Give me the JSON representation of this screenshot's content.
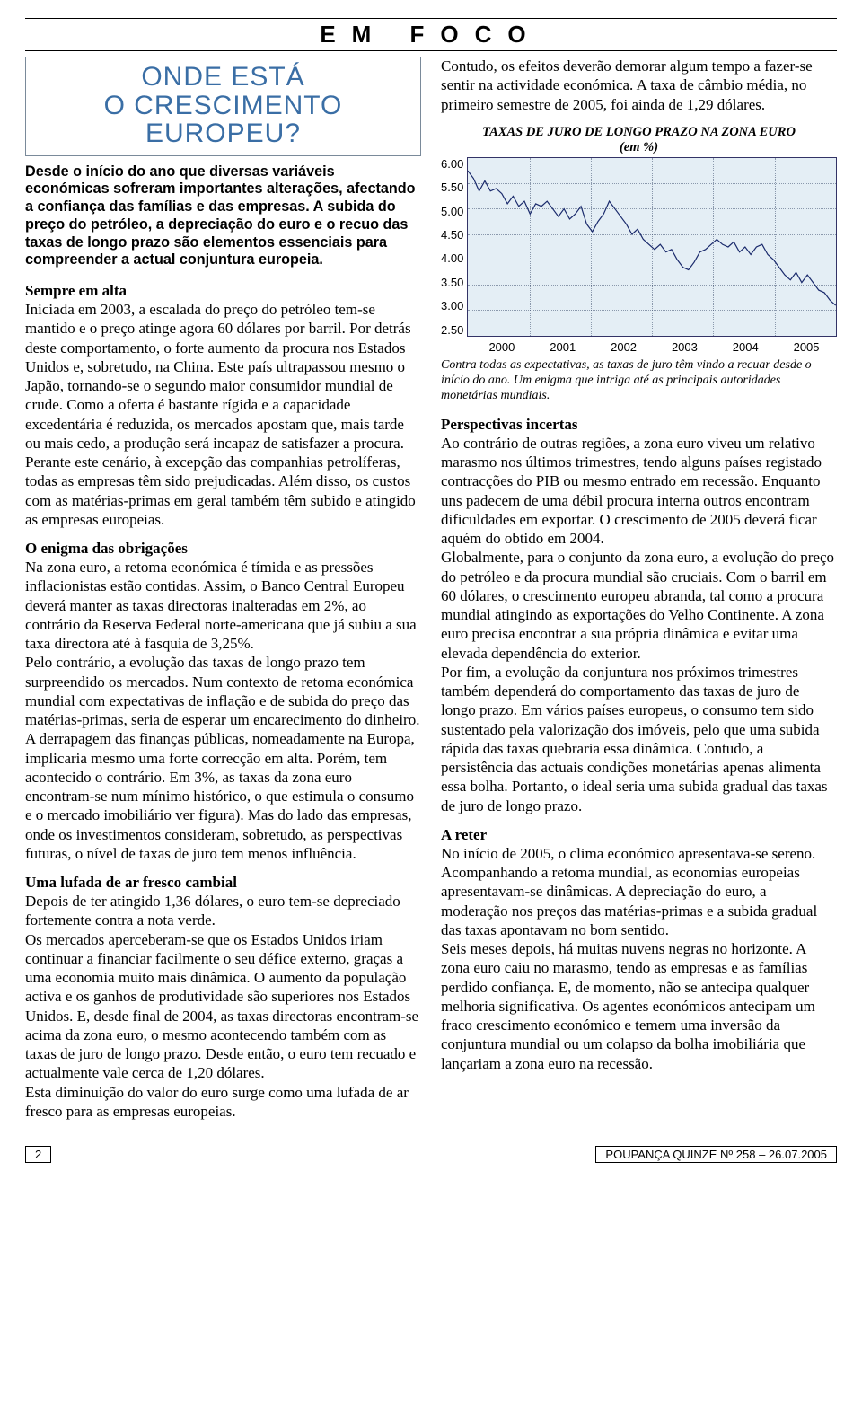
{
  "masthead": "EM FOCO",
  "headline_l1": "ONDE ESTÁ",
  "headline_l2": "O CRESCIMENTO EUROPEU?",
  "intro": "Desde o início do ano que diversas variáveis económicas sofreram importantes alterações, afectando a confiança das famílias e das empresas. A subida do preço do petróleo, a depreciação do euro e o recuo das taxas de longo prazo são elementos essenciais para compreender a actual conjuntura europeia.",
  "sec1_head": "Sempre em alta",
  "sec1_body": "Iniciada em 2003, a escalada do preço do petróleo tem-se mantido e o preço atinge agora 60 dólares por barril. Por detrás deste comportamento, o forte aumento da procura nos Estados Unidos e, sobretudo, na China. Este país ultrapassou mesmo o Japão, tornando-se o segundo maior consumidor mundial de crude. Como a oferta é bastante rígida e a capacidade excedentária é reduzida, os mercados apostam que, mais tarde ou mais cedo, a produção será incapaz de satisfazer a procura.\nPerante este cenário, à excepção das companhias petrolíferas, todas as empresas têm sido prejudicadas. Além disso, os custos com as matérias-primas em geral também têm subido e atingido as empresas europeias.",
  "sec2_head": "O enigma das obrigações",
  "sec2_body": "Na zona euro, a retoma económica é tímida e as pressões inflacionistas estão contidas. Assim, o Banco Central Europeu deverá manter as taxas directoras inalteradas em 2%, ao contrário da Reserva Federal norte-americana que já subiu a sua taxa directora até à fasquia de 3,25%.\nPelo contrário, a evolução das taxas de longo prazo tem surpreendido os mercados. Num contexto de retoma económica mundial com expectativas de inflação e de subida do preço das matérias-primas, seria de esperar um encarecimento do dinheiro. A derrapagem das finanças públicas, nomeadamente na Europa, implicaria mesmo uma forte correcção em alta. Porém, tem acontecido o contrário. Em 3%, as taxas da zona euro encontram-se num mínimo histórico, o que estimula o consumo e o mercado imobiliário ver figura). Mas do lado das empresas, onde os investimentos consideram, sobretudo, as perspectivas futuras, o nível de taxas de juro tem menos influência.",
  "sec3_head": "Uma lufada de ar fresco cambial",
  "sec3_body": "Depois de ter atingido 1,36 dólares, o euro tem-se depreciado fortemente contra a nota verde.\nOs mercados aperceberam-se que os Estados Unidos iriam continuar a financiar facilmente o seu défice externo, graças a uma economia muito mais dinâmica. O aumento da população activa e os ganhos de produtividade são superiores nos Estados Unidos. E, desde final de 2004, as taxas directoras encontram-se acima da zona euro, o mesmo acontecendo também com as taxas de juro de longo prazo. Desde então, o euro tem recuado e actualmente vale cerca de 1,20 dólares.\nEsta diminuição do valor do euro surge como uma lufada de ar fresco para as empresas europeias.",
  "right_intro": "Contudo, os efeitos deverão demorar algum tempo a fazer-se sentir na actividade económica. A taxa de câmbio média, no primeiro semestre de 2005, foi ainda de 1,29 dólares.",
  "chart": {
    "title": "TAXAS DE JURO DE LONGO PRAZO NA ZONA EURO",
    "subtitle": "(em %)",
    "ylabels": [
      "6.00",
      "5.50",
      "5.00",
      "4.50",
      "4.00",
      "3.50",
      "3.00",
      "2.50"
    ],
    "ymin": 2.5,
    "ymax": 6.0,
    "xlabels": [
      "2000",
      "2001",
      "2002",
      "2003",
      "2004",
      "2005"
    ],
    "values": [
      5.75,
      5.6,
      5.35,
      5.55,
      5.35,
      5.4,
      5.3,
      5.1,
      5.25,
      5.05,
      5.15,
      4.9,
      5.1,
      5.05,
      5.15,
      5.0,
      4.85,
      5.0,
      4.8,
      4.9,
      5.05,
      4.7,
      4.55,
      4.75,
      4.9,
      5.15,
      5.0,
      4.85,
      4.7,
      4.5,
      4.6,
      4.4,
      4.3,
      4.2,
      4.3,
      4.15,
      4.2,
      4.0,
      3.85,
      3.8,
      3.95,
      4.15,
      4.2,
      4.3,
      4.4,
      4.3,
      4.25,
      4.35,
      4.15,
      4.25,
      4.1,
      4.25,
      4.3,
      4.1,
      4.0,
      3.85,
      3.7,
      3.6,
      3.75,
      3.55,
      3.7,
      3.55,
      3.4,
      3.35,
      3.2,
      3.1
    ],
    "line_color": "#1a2a6c",
    "bg_color": "#e4eef5",
    "grid_color": "#334466"
  },
  "chart_caption": "Contra todas as expectativas, as taxas de juro têm vindo a recuar desde o início do ano. Um enigma que intriga até as principais autoridades monetárias mundiais.",
  "sec4_head": "Perspectivas incertas",
  "sec4_body": "Ao contrário de outras regiões, a zona euro viveu um relativo marasmo nos últimos trimestres, tendo alguns países registado contracções do PIB ou mesmo entrado em recessão. Enquanto uns padecem de uma débil procura interna outros encontram dificuldades em exportar. O crescimento de 2005 deverá ficar aquém do obtido em 2004.\nGlobalmente, para o conjunto da zona euro, a evolução do preço do petróleo e da procura mundial são cruciais. Com o barril em 60 dólares, o crescimento europeu abranda, tal como a procura mundial atingindo as exportações do Velho Continente. A zona euro precisa encontrar a sua própria dinâmica e evitar uma elevada dependência do exterior.\nPor fim, a evolução da conjuntura nos próximos trimestres também dependerá do comportamento das taxas de juro de longo prazo. Em vários países europeus, o consumo tem sido sustentado pela valorização dos imóveis, pelo que uma subida rápida das taxas quebraria essa dinâmica. Contudo, a persistência das actuais condições monetárias apenas alimenta essa bolha. Portanto, o ideal seria uma subida gradual das taxas de juro de longo prazo.",
  "sec5_head": "A reter",
  "sec5_body": "No início de 2005, o clima económico apresentava-se sereno. Acompanhando a retoma mundial, as economias europeias apresentavam-se dinâmicas. A depreciação do euro, a moderação nos preços das matérias-primas e a subida gradual das taxas apontavam no bom sentido.\nSeis meses depois, há muitas nuvens negras no horizonte. A zona euro caiu no marasmo, tendo as empresas e as famílias perdido confiança. E, de momento, não se antecipa qualquer melhoria significativa. Os agentes económicos antecipam um fraco crescimento económico e temem uma inversão da conjuntura mundial ou um colapso da bolha imobiliária que lançariam a zona euro na recessão.",
  "page_number": "2",
  "pub_info": "POUPANÇA QUINZE Nº 258 – 26.07.2005"
}
